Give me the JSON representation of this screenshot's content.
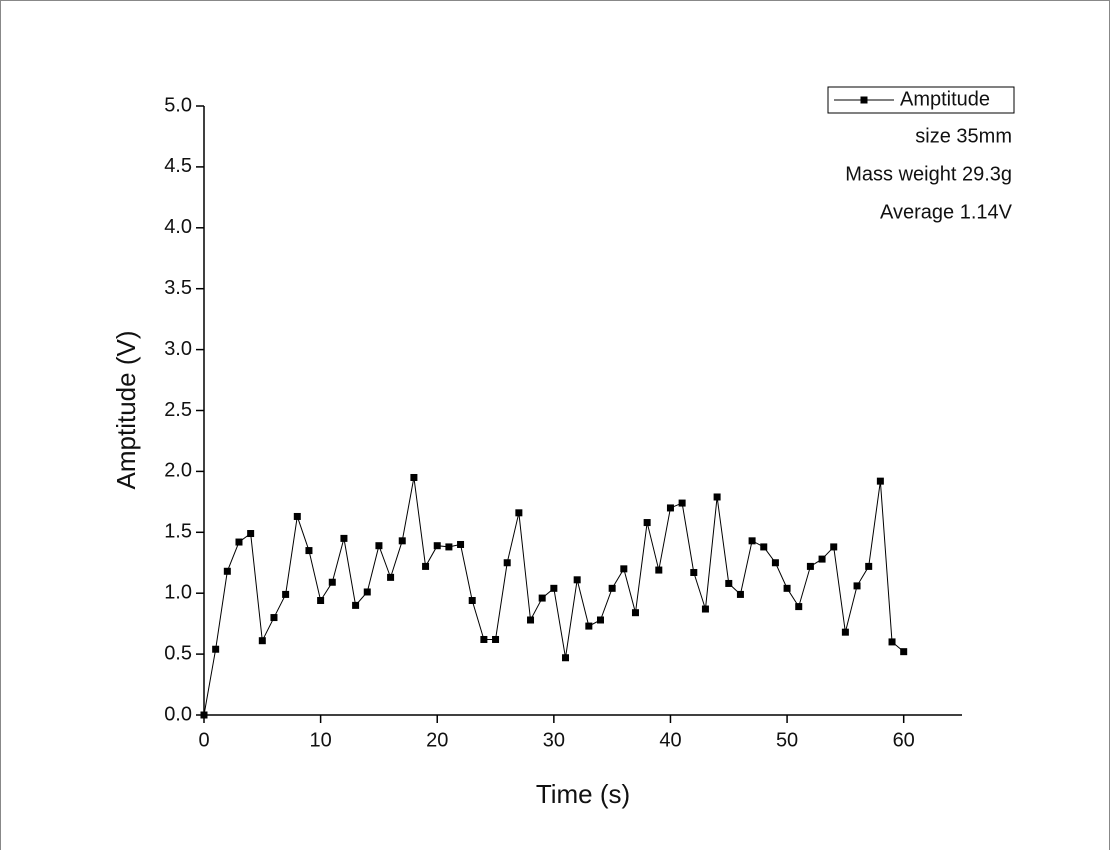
{
  "chart_data": {
    "type": "line",
    "xlabel": "Time (s)",
    "ylabel": "Amptitude (V)",
    "annotations": [
      "size 35mm",
      "Mass weight 29.3g",
      "Average 1.14V"
    ],
    "legend": "upper right",
    "xlim": [
      0,
      65
    ],
    "ylim": [
      0,
      5
    ],
    "xticks": [
      0,
      10,
      20,
      30,
      40,
      50,
      60
    ],
    "yticks": [
      {
        "value": 0,
        "label": "0.0"
      },
      0.5,
      {
        "value": 1,
        "label": "1.0"
      },
      1.5,
      {
        "value": 2,
        "label": "2.0"
      },
      2.5,
      {
        "value": 3,
        "label": "3.0"
      },
      3.5,
      {
        "value": 4,
        "label": "4.0"
      },
      4.5,
      {
        "value": 5,
        "label": "5.0"
      }
    ],
    "x": [
      0,
      1,
      2,
      3,
      4,
      5,
      6,
      7,
      8,
      9,
      10,
      11,
      12,
      13,
      14,
      15,
      16,
      17,
      18,
      19,
      20,
      21,
      22,
      23,
      24,
      25,
      26,
      27,
      28,
      29,
      30,
      31,
      32,
      33,
      34,
      35,
      36,
      37,
      38,
      39,
      40,
      41,
      42,
      43,
      44,
      45,
      46,
      47,
      48,
      49,
      50,
      51,
      52,
      53,
      54,
      55,
      56,
      57,
      58,
      59,
      60
    ],
    "series": [
      {
        "name": "Amptitude",
        "color": "#000000",
        "values": [
          0.0,
          0.54,
          1.18,
          1.42,
          1.49,
          0.61,
          0.8,
          0.99,
          1.63,
          1.35,
          0.94,
          1.09,
          1.45,
          0.9,
          1.01,
          1.39,
          1.13,
          1.43,
          1.95,
          1.22,
          1.39,
          1.38,
          1.4,
          0.94,
          0.62,
          0.62,
          1.25,
          1.66,
          0.78,
          0.96,
          1.04,
          0.47,
          1.11,
          0.73,
          0.78,
          1.04,
          1.2,
          0.84,
          1.58,
          1.19,
          1.7,
          1.74,
          1.17,
          0.87,
          1.79,
          1.08,
          0.99,
          1.43,
          1.38,
          1.25,
          1.04,
          0.89,
          1.22,
          1.28,
          1.38,
          0.68,
          1.06,
          1.22,
          1.92,
          0.6,
          0.52
        ]
      }
    ]
  }
}
